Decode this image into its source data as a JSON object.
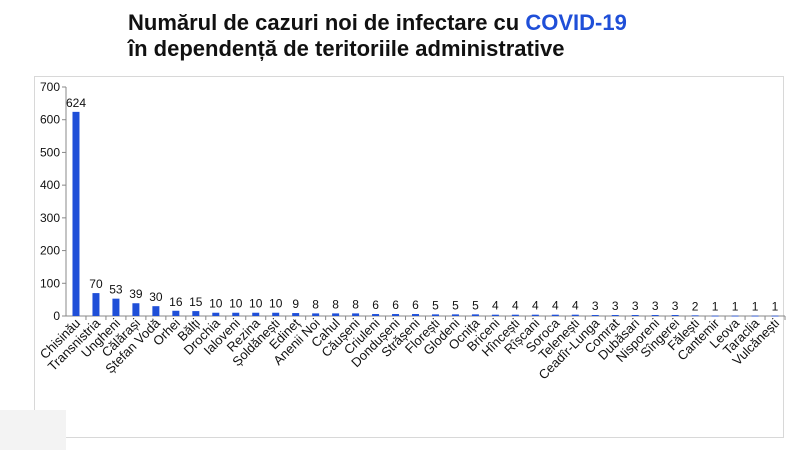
{
  "title": {
    "line1_part1": "Numărul de cazuri noi de infectare cu ",
    "line1_accent": "COVID-19",
    "line2": "în dependență de teritoriile administrative"
  },
  "colors": {
    "bar": "#1f4fd8",
    "title_accent": "#1f4fd8",
    "axis": "#888888",
    "text": "#111111"
  },
  "chart_data": {
    "type": "bar",
    "title": "Numărul de cazuri noi de infectare cu COVID-19 în dependență de teritoriile administrative",
    "categories": [
      "Chisinău",
      "Transnistria",
      "Ungheni",
      "Călărași",
      "Ștefan Vodă",
      "Orhei",
      "Bălți",
      "Drochia",
      "Ialoveni",
      "Rezina",
      "Șoldănești",
      "Edineț",
      "Anenii Noi",
      "Cahul",
      "Căușeni",
      "Criuleni",
      "Dondușeni",
      "Strășeni",
      "Florești",
      "Glodeni",
      "Ocnița",
      "Briceni",
      "Hîncești",
      "Rîșcani",
      "Soroca",
      "Telenești",
      "Ceadîr-Lunga",
      "Comrat",
      "Dubăsari",
      "Nisporeni",
      "Sîngerei",
      "Fălești",
      "Cantemir",
      "Leova",
      "Taraclia",
      "Vulcănești"
    ],
    "values": [
      624,
      70,
      53,
      39,
      30,
      16,
      15,
      10,
      10,
      10,
      10,
      9,
      8,
      8,
      8,
      6,
      6,
      6,
      5,
      5,
      5,
      4,
      4,
      4,
      4,
      4,
      3,
      3,
      3,
      3,
      3,
      2,
      1,
      1,
      1,
      1
    ],
    "ylim": [
      0,
      700
    ],
    "yticks": [
      0,
      100,
      200,
      300,
      400,
      500,
      600,
      700
    ],
    "xlabel": "",
    "ylabel": "",
    "grid": false,
    "legend": "none"
  }
}
